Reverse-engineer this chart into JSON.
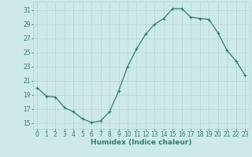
{
  "x": [
    0,
    1,
    2,
    3,
    4,
    5,
    6,
    7,
    8,
    9,
    10,
    11,
    12,
    13,
    14,
    15,
    16,
    17,
    18,
    19,
    20,
    21,
    22,
    23
  ],
  "y": [
    20.0,
    18.8,
    18.7,
    17.2,
    16.6,
    15.6,
    15.1,
    15.3,
    16.6,
    19.5,
    23.0,
    25.5,
    27.6,
    29.0,
    29.8,
    31.2,
    31.2,
    30.0,
    29.8,
    29.7,
    27.8,
    25.3,
    23.8,
    21.8
  ],
  "line_color": "#2e7d6e",
  "marker": "+",
  "markersize": 3,
  "linewidth": 0.9,
  "bg_color": "#ceeae8",
  "grid_color": "#b0d4d0",
  "xlabel": "Humidex (Indice chaleur)",
  "xlabel_fontsize": 6.5,
  "yticks": [
    15,
    17,
    19,
    21,
    23,
    25,
    27,
    29,
    31
  ],
  "xticks": [
    0,
    1,
    2,
    3,
    4,
    5,
    6,
    7,
    8,
    9,
    10,
    11,
    12,
    13,
    14,
    15,
    16,
    17,
    18,
    19,
    20,
    21,
    22,
    23
  ],
  "ylim": [
    14.2,
    32.2
  ],
  "xlim": [
    -0.5,
    23.5
  ],
  "tick_fontsize": 5.5
}
